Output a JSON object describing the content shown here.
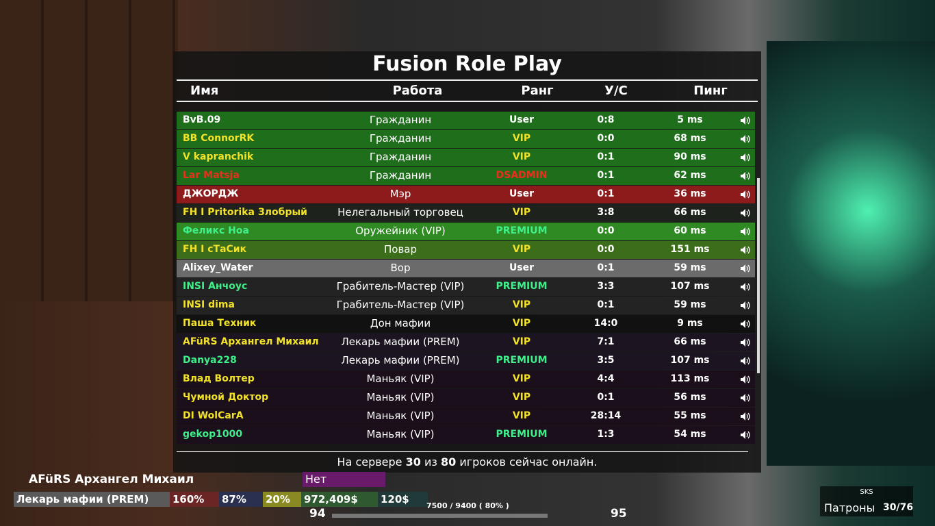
{
  "header": {
    "title": "Fusion Role Play"
  },
  "columns": {
    "name": "Имя",
    "job": "Работа",
    "rank": "Ранг",
    "score": "У/С",
    "ping": "Пинг"
  },
  "rows": [
    {
      "name": "BvB.09",
      "job": "Гражданин",
      "rank": "User",
      "score": "0:8",
      "ping": "5 ms",
      "bg": "#1f6e1c",
      "name_color": "#ffffff",
      "rank_color": "#ffffff"
    },
    {
      "name": "BB ConnorRK",
      "job": "Гражданин",
      "rank": "VIP",
      "score": "0:0",
      "ping": "68 ms",
      "bg": "#1f6e1c",
      "name_color": "#f2e22a",
      "rank_color": "#f2e22a"
    },
    {
      "name": "V kapranchik",
      "job": "Гражданин",
      "rank": "VIP",
      "score": "0:1",
      "ping": "90 ms",
      "bg": "#1f6e1c",
      "name_color": "#f2e22a",
      "rank_color": "#f2e22a"
    },
    {
      "name": "Lar Matsja",
      "job": "Гражданин",
      "rank": "DSADMIN",
      "score": "0:1",
      "ping": "62 ms",
      "bg": "#1f6e1c",
      "name_color": "#e8301c",
      "rank_color": "#e8301c"
    },
    {
      "name": "ДЖОРДЖ",
      "job": "Мэр",
      "rank": "User",
      "score": "0:1",
      "ping": "36 ms",
      "bg": "#8e1b1b",
      "name_color": "#ffffff",
      "rank_color": "#ffffff"
    },
    {
      "name": "FH I Pritorika Злобрый",
      "job": "Нелегальный торговец",
      "rank": "VIP",
      "score": "3:8",
      "ping": "66 ms",
      "bg": "#1e221c",
      "name_color": "#f2e22a",
      "rank_color": "#f2e22a"
    },
    {
      "name": "Феликс Ноа",
      "job": "Оружейник (VIP)",
      "rank": "PREMIUM",
      "score": "0:0",
      "ping": "60 ms",
      "bg": "#2f8a24",
      "name_color": "#3ff08a",
      "rank_color": "#3ff08a"
    },
    {
      "name": "FH I сТаСик",
      "job": "Повар",
      "rank": "VIP",
      "score": "0:0",
      "ping": "151 ms",
      "bg": "#3c6d1a",
      "name_color": "#f2e22a",
      "rank_color": "#f2e22a"
    },
    {
      "name": "Alixey_Water",
      "job": "Вор",
      "rank": "User",
      "score": "0:1",
      "ping": "59 ms",
      "bg": "#6b6b6b",
      "name_color": "#ffffff",
      "rank_color": "#ffffff"
    },
    {
      "name": "INSI Анчоус",
      "job": "Грабитель-Мастер (VIP)",
      "rank": "PREMIUM",
      "score": "3:3",
      "ping": "107 ms",
      "bg": "#232323",
      "name_color": "#3ff08a",
      "rank_color": "#3ff08a"
    },
    {
      "name": "INSI dima",
      "job": "Грабитель-Мастер (VIP)",
      "rank": "VIP",
      "score": "0:1",
      "ping": "59 ms",
      "bg": "#232323",
      "name_color": "#f2e22a",
      "rank_color": "#f2e22a"
    },
    {
      "name": "Паша Техник",
      "job": "Дон мафии",
      "rank": "VIP",
      "score": "14:0",
      "ping": "9 ms",
      "bg": "#111111",
      "name_color": "#f2e22a",
      "rank_color": "#f2e22a"
    },
    {
      "name": "AFüRS Архангел Михаил",
      "job": "Лекарь мафии (PREM)",
      "rank": "VIP",
      "score": "7:1",
      "ping": "66 ms",
      "bg": "#1c1420",
      "name_color": "#f2e22a",
      "rank_color": "#f2e22a"
    },
    {
      "name": "Danya228",
      "job": "Лекарь мафии (PREM)",
      "rank": "PREMIUM",
      "score": "3:5",
      "ping": "107 ms",
      "bg": "#1c1420",
      "name_color": "#3ff08a",
      "rank_color": "#3ff08a"
    },
    {
      "name": "Влад Волтер",
      "job": "Маньяк (VIP)",
      "rank": "VIP",
      "score": "4:4",
      "ping": "113 ms",
      "bg": "#1a0f1a",
      "name_color": "#f2e22a",
      "rank_color": "#f2e22a"
    },
    {
      "name": "Чумной Доктор",
      "job": "Маньяк (VIP)",
      "rank": "VIP",
      "score": "0:1",
      "ping": "56 ms",
      "bg": "#1a0f1a",
      "name_color": "#f2e22a",
      "rank_color": "#f2e22a"
    },
    {
      "name": "DI WolCarA",
      "job": "Маньяк (VIP)",
      "rank": "VIP",
      "score": "28:14",
      "ping": "55 ms",
      "bg": "#1a0f1a",
      "name_color": "#f2e22a",
      "rank_color": "#f2e22a"
    },
    {
      "name": "gekop1000",
      "job": "Маньяк (VIP)",
      "rank": "PREMIUM",
      "score": "1:3",
      "ping": "54 ms",
      "bg": "#1a0f1a",
      "name_color": "#3ff08a",
      "rank_color": "#3ff08a"
    }
  ],
  "footer": {
    "prefix": "На сервере",
    "online": 30,
    "middle": "из",
    "max": 80,
    "suffix": "игроков сейчас онлайн."
  },
  "hud": {
    "player": "AFüRS Архангел Михаил",
    "license": "Нет лицензии",
    "job": "Лекарь мафии (PREM)",
    "health": "160%",
    "armor": "87%",
    "hunger": "20%",
    "money": "972,409$",
    "timer": "120$",
    "left_value": "94",
    "right_value": "95",
    "xp": "7500 / 9400 ( 80% )",
    "weapon": "SKS",
    "ammo_label": "Патроны",
    "ammo": "30/76"
  }
}
